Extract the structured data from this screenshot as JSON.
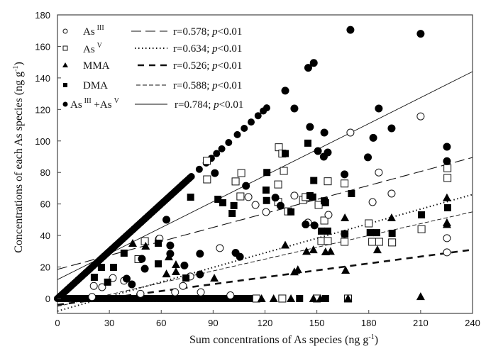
{
  "chart_data": {
    "type": "scatter",
    "title": "",
    "xlabel": "Sum concentrations of As species (ng g",
    "xlabel_sup": "-1",
    "xlabel_end": ")",
    "ylabel": "Concentrations of each As species (ng g",
    "ylabel_sup": "-1",
    "ylabel_end": ")",
    "xlim": [
      0,
      240
    ],
    "ylim": [
      -10,
      180
    ],
    "xticks": [
      "0",
      "30",
      "60",
      "90",
      "120",
      "150",
      "180",
      "210",
      "240"
    ],
    "yticks": [
      "0",
      "20",
      "40",
      "60",
      "80",
      "100",
      "120",
      "140",
      "160",
      "180"
    ],
    "grid": false,
    "legend_position": "top-left",
    "series": [
      {
        "name": "As",
        "name_sup": "III",
        "marker": "open-circle",
        "line_style": "long-dash",
        "stat": "r=0.578; ",
        "stat_p": "p",
        "stat_end": "<0.01",
        "fit": [
          [
            0,
            18.5
          ],
          [
            240,
            89.5
          ]
        ],
        "points": [
          [
            21,
            8
          ],
          [
            25.8,
            7.2
          ],
          [
            32,
            13
          ],
          [
            38.5,
            11.3
          ],
          [
            58.7,
            37.8
          ],
          [
            59,
            38
          ],
          [
            72.6,
            8
          ],
          [
            68,
            4
          ],
          [
            76.8,
            14
          ],
          [
            82.9,
            4
          ],
          [
            93.9,
            32
          ],
          [
            110.4,
            64.4
          ],
          [
            114.5,
            59.4
          ],
          [
            120.6,
            54.9
          ],
          [
            137,
            65.3
          ],
          [
            144.8,
            48.2
          ],
          [
            156.7,
            53.1
          ],
          [
            166,
            41
          ],
          [
            169.4,
            105.3
          ],
          [
            182.2,
            61.2
          ],
          [
            185.8,
            80
          ],
          [
            193.2,
            66.6
          ],
          [
            210,
            115.6
          ],
          [
            225.2,
            38.3
          ],
          [
            225.2,
            29.3
          ],
          [
            48,
            3
          ],
          [
            100,
            2
          ],
          [
            20,
            1
          ]
        ]
      },
      {
        "name": "As",
        "name_sup": "V",
        "marker": "open-square",
        "line_style": "dotted",
        "stat": "r=0.634; ",
        "stat_p": "p",
        "stat_end": "<0.01",
        "fit": [
          [
            0,
            -8
          ],
          [
            240,
            66
          ]
        ],
        "points": [
          [
            46.8,
            25
          ],
          [
            50.5,
            36.4
          ],
          [
            86.4,
            87.4
          ],
          [
            86.5,
            75.6
          ],
          [
            103,
            74.3
          ],
          [
            105.8,
            64.8
          ],
          [
            106.3,
            79.6
          ],
          [
            127.6,
            72.4
          ],
          [
            127.6,
            61.3
          ],
          [
            128,
            96
          ],
          [
            130,
            92
          ],
          [
            130.9,
            81
          ],
          [
            133.3,
            55.3
          ],
          [
            142,
            62.6
          ],
          [
            143.5,
            64.4
          ],
          [
            151,
            59.4
          ],
          [
            154.3,
            49.5
          ],
          [
            152.6,
            36.5
          ],
          [
            156.3,
            36.5
          ],
          [
            156.3,
            74.4
          ],
          [
            166,
            73
          ],
          [
            166,
            36
          ],
          [
            180,
            47.7
          ],
          [
            182,
            36
          ],
          [
            186,
            36
          ],
          [
            193.5,
            35.6
          ],
          [
            210.5,
            44
          ],
          [
            225.5,
            82.7
          ],
          [
            225.5,
            76.5
          ],
          [
            115,
            0
          ],
          [
            130,
            0
          ],
          [
            150,
            0
          ],
          [
            168,
            0
          ]
        ]
      },
      {
        "name": "MMA",
        "name_sup": "",
        "marker": "filled-triangle",
        "line_style": "heavy-dash",
        "stat": "r=0.526; ",
        "stat_p": "p",
        "stat_end": "<0.01",
        "fit": [
          [
            0,
            -4
          ],
          [
            240,
            31
          ]
        ],
        "points": [
          [
            43.5,
            35.1
          ],
          [
            51,
            33.3
          ],
          [
            63,
            15.7
          ],
          [
            64.4,
            26.5
          ],
          [
            68.5,
            21.6
          ],
          [
            68.5,
            17.1
          ],
          [
            90.7,
            13
          ],
          [
            131.7,
            34
          ],
          [
            137,
            17
          ],
          [
            139,
            18.4
          ],
          [
            144,
            30
          ],
          [
            148,
            31
          ],
          [
            155,
            29.7
          ],
          [
            157.9,
            30
          ],
          [
            166.2,
            51.3
          ],
          [
            166.6,
            18
          ],
          [
            185,
            31
          ],
          [
            193.2,
            51.3
          ],
          [
            210,
            1.3
          ],
          [
            225.2,
            64
          ],
          [
            225.2,
            48.2
          ],
          [
            225.2,
            47
          ],
          [
            118,
            0
          ],
          [
            125,
            0
          ],
          [
            135,
            0
          ],
          [
            148,
            0
          ],
          [
            152,
            0
          ],
          [
            168,
            0
          ]
        ]
      },
      {
        "name": "DMA",
        "name_sup": "",
        "marker": "filled-square",
        "line_style": "thin-dash",
        "stat": "r=0.588; ",
        "stat_p": "p",
        "stat_end": "<0.01",
        "fit": [
          [
            0,
            -5
          ],
          [
            240,
            55
          ]
        ],
        "points": [
          [
            21.3,
            13.5
          ],
          [
            25.4,
            19.8
          ],
          [
            29,
            10.4
          ],
          [
            32.4,
            19.8
          ],
          [
            38.5,
            28.8
          ],
          [
            58.3,
            35.1
          ],
          [
            58.3,
            22
          ],
          [
            74.3,
            13
          ],
          [
            77,
            64.3
          ],
          [
            92.8,
            63
          ],
          [
            95.6,
            60.8
          ],
          [
            101,
            54
          ],
          [
            102,
            59
          ],
          [
            120.6,
            68.8
          ],
          [
            120.9,
            62.2
          ],
          [
            121.1,
            80
          ],
          [
            131.7,
            92
          ],
          [
            135,
            55
          ],
          [
            144.8,
            98.6
          ],
          [
            147.6,
            64.4
          ],
          [
            148.2,
            74.9
          ],
          [
            146,
            65.3
          ],
          [
            152.6,
            42.8
          ],
          [
            154.3,
            62
          ],
          [
            155,
            60.8
          ],
          [
            156.3,
            42.8
          ],
          [
            166.2,
            41
          ],
          [
            170,
            66.6
          ],
          [
            180.8,
            41.8
          ],
          [
            184.6,
            41.8
          ],
          [
            193.5,
            41.4
          ],
          [
            210.5,
            53.1
          ],
          [
            225.6,
            57.6
          ],
          [
            140,
            0
          ],
          [
            155,
            0
          ]
        ]
      },
      {
        "name": "As",
        "name_sup": "III",
        "name2": " +As",
        "name2_sup": "V",
        "marker": "filled-circle",
        "line_style": "solid",
        "stat": "r=0.784; ",
        "stat_p": "p",
        "stat_end": "<0.01",
        "fit": [
          [
            0,
            12
          ],
          [
            240,
            144
          ]
        ],
        "points": [
          [
            40,
            12.6
          ],
          [
            43,
            9
          ],
          [
            48.8,
            25.2
          ],
          [
            50.5,
            18.9
          ],
          [
            63,
            50
          ],
          [
            65.2,
            33.7
          ],
          [
            65.2,
            28.4
          ],
          [
            73.4,
            21
          ],
          [
            82.4,
            28.4
          ],
          [
            82.4,
            15.3
          ],
          [
            91,
            79.6
          ],
          [
            103,
            29
          ],
          [
            105.5,
            26.5
          ],
          [
            109,
            71.5
          ],
          [
            126,
            64
          ],
          [
            129,
            58.9
          ],
          [
            131.7,
            131.9
          ],
          [
            137,
            120.6
          ],
          [
            143.5,
            47
          ],
          [
            146,
            108.9
          ],
          [
            145,
            146.4
          ],
          [
            148.2,
            149.5
          ],
          [
            148.6,
            46.4
          ],
          [
            150.6,
            93.6
          ],
          [
            154,
            90
          ],
          [
            154.3,
            105.3
          ],
          [
            156.3,
            92.7
          ],
          [
            166,
            78.8
          ],
          [
            169.4,
            170.5
          ],
          [
            179.5,
            89.6
          ],
          [
            182.6,
            102
          ],
          [
            185.8,
            120.6
          ],
          [
            193.2,
            108
          ],
          [
            210,
            168
          ],
          [
            225.2,
            96.3
          ],
          [
            225.2,
            87.2
          ]
        ]
      }
    ],
    "diagonal_series": {
      "x_end": 121,
      "note": "As III + As V dense points along y = x"
    },
    "zero_row": {
      "x_end": 113
    }
  }
}
